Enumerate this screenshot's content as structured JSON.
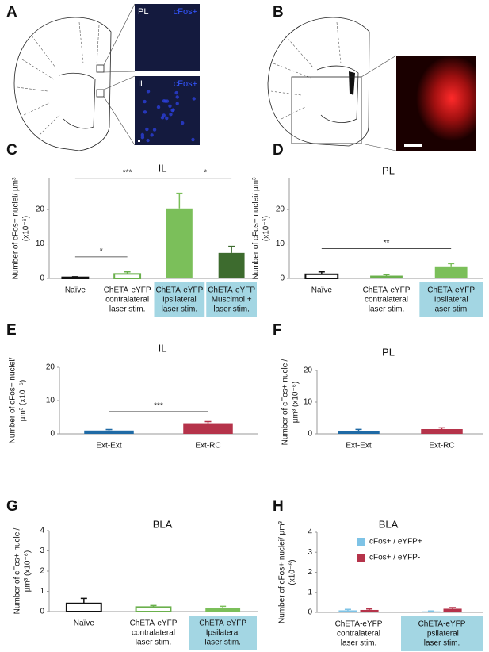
{
  "panel_labels": [
    "A",
    "B"
  ],
  "image_labels": {
    "pl": "PL",
    "pl_marker": "cFos+",
    "il": "IL",
    "il_marker": "cFos+"
  },
  "chart_data": [
    {
      "type": "bar",
      "panel": "C",
      "title": "IL",
      "ylabel": [
        "Number of cFos+ nuclei/ µm³",
        "(x10⁻⁶)"
      ],
      "categories": [
        [
          "Naïve"
        ],
        [
          "ChETA-eYFP",
          "contralateral",
          "laser stim."
        ],
        [
          "ChETA-eYFP",
          "Ipsilateral",
          "laser stim."
        ],
        [
          "ChETA-eYFP",
          "Muscimol +",
          "laser stim."
        ]
      ],
      "highlight": [
        false,
        false,
        true,
        true
      ],
      "values": [
        0.3,
        1.3,
        20.3,
        7.4
      ],
      "errors": [
        0.2,
        0.6,
        4.4,
        1.9
      ],
      "colors": [
        "#111111",
        "#6ab04c",
        "#7bbf5a",
        "#3d6b2e"
      ],
      "outline": [
        true,
        true,
        false,
        false
      ],
      "ylim": [
        0,
        29
      ],
      "yticks": [
        0,
        10,
        20
      ],
      "significance": [
        {
          "from": 0,
          "to": 2,
          "label": "***"
        },
        {
          "from": 0,
          "to": 1,
          "label": "*"
        },
        {
          "from": 2,
          "to": 3,
          "label": "*"
        }
      ]
    },
    {
      "type": "bar",
      "panel": "D",
      "title": "PL",
      "ylabel": [
        "Number of cFos+ nuclei/ µm³",
        "(x10⁻⁶)"
      ],
      "categories": [
        [
          "Naïve"
        ],
        [
          "ChETA-eYFP",
          "contralateral",
          "laser stim."
        ],
        [
          "ChETA-eYFP",
          "Ipsilateral",
          "laser stim."
        ]
      ],
      "highlight": [
        false,
        false,
        true
      ],
      "values": [
        1.2,
        0.8,
        3.5
      ],
      "errors": [
        0.7,
        0.3,
        0.8
      ],
      "colors": [
        "#111111",
        "#6ab04c",
        "#7bbf5a"
      ],
      "outline": [
        true,
        false,
        false
      ],
      "ylim": [
        0,
        29
      ],
      "yticks": [
        0,
        10,
        20
      ],
      "significance": [
        {
          "from": 0,
          "to": 2,
          "label": "**"
        }
      ]
    },
    {
      "type": "bar",
      "panel": "E",
      "title": "IL",
      "ylabel": [
        "Number of cFos+ nuclei/",
        "µm³  (x10⁻⁶)"
      ],
      "categories": [
        [
          "Ext-Ext"
        ],
        [
          "Ext-RC"
        ]
      ],
      "highlight": [
        false,
        false
      ],
      "values": [
        1.0,
        3.2
      ],
      "errors": [
        0.3,
        0.5
      ],
      "colors": [
        "#1f6aa5",
        "#b5334a"
      ],
      "outline": [
        false,
        false
      ],
      "ylim": [
        0,
        20
      ],
      "yticks": [
        0,
        10,
        20
      ],
      "significance": [
        {
          "from": 0,
          "to": 1,
          "label": "***"
        }
      ]
    },
    {
      "type": "bar",
      "panel": "F",
      "title": "PL",
      "ylabel": [
        "Number of cFos+ nuclei/",
        "µm³  (x10⁻⁶)"
      ],
      "categories": [
        [
          "Ext-Ext"
        ],
        [
          "Ext-RC"
        ]
      ],
      "highlight": [
        false,
        false
      ],
      "values": [
        1.0,
        1.5
      ],
      "errors": [
        0.4,
        0.4
      ],
      "colors": [
        "#1f6aa5",
        "#b5334a"
      ],
      "outline": [
        false,
        false
      ],
      "ylim": [
        0,
        20
      ],
      "yticks": [
        0,
        10,
        20
      ],
      "significance": []
    },
    {
      "type": "bar",
      "panel": "G",
      "title": "BLA",
      "ylabel": [
        "Number of cFos+ nuclei/",
        "µm³  (x10⁻⁶)"
      ],
      "categories": [
        [
          "Naïve"
        ],
        [
          "ChETA-eYFP",
          "contralateral",
          "laser stim."
        ],
        [
          "ChETA-eYFP",
          "Ipsilateral",
          "laser stim."
        ]
      ],
      "highlight": [
        false,
        false,
        true
      ],
      "values": [
        0.4,
        0.22,
        0.18
      ],
      "errors": [
        0.25,
        0.08,
        0.08
      ],
      "colors": [
        "#111111",
        "#6ab04c",
        "#7bbf5a"
      ],
      "outline": [
        true,
        true,
        false
      ],
      "ylim": [
        0,
        4
      ],
      "yticks": [
        0,
        1,
        2,
        3,
        4
      ],
      "significance": []
    },
    {
      "type": "grouped_bar",
      "panel": "H",
      "title": "BLA",
      "ylabel": [
        "Number of cFos+ nuclei/ µm³",
        "(x10⁻⁶)"
      ],
      "categories": [
        [
          "ChETA-eYFP",
          "contralateral",
          "laser stim."
        ],
        [
          "ChETA-eYFP",
          "Ipsilateral",
          "laser stim."
        ]
      ],
      "highlight": [
        false,
        true
      ],
      "series": [
        {
          "name": "cFos+ / eYFP+",
          "color": "#7ec3e6",
          "values": [
            0.1,
            0.05
          ],
          "errors": [
            0.05,
            0.02
          ]
        },
        {
          "name": "cFos+ / eYFP-",
          "color": "#b5334a",
          "values": [
            0.12,
            0.18
          ],
          "errors": [
            0.05,
            0.06
          ]
        }
      ],
      "legend": "upper left",
      "ylim": [
        0,
        4
      ],
      "yticks": [
        0,
        1,
        2,
        3,
        4
      ],
      "significance": []
    }
  ]
}
